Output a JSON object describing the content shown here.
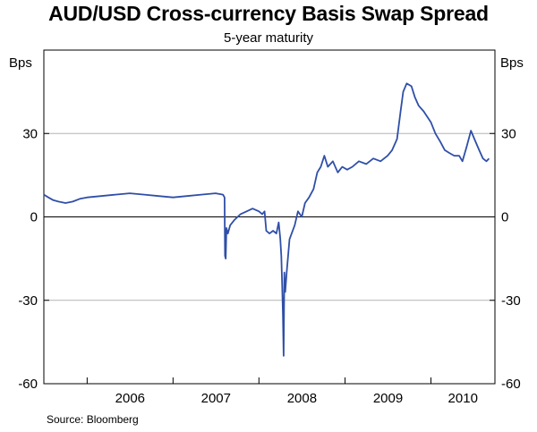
{
  "chart_data": {
    "type": "line",
    "title": "AUD/USD Cross-currency Basis Swap Spread",
    "subtitle": "5-year maturity",
    "ylabel_left": "Bps",
    "ylabel_right": "Bps",
    "ylim": [
      -60,
      60
    ],
    "yticks": [
      -60,
      -30,
      0,
      30
    ],
    "ytick_labels": [
      "-60",
      "-30",
      "0",
      "30"
    ],
    "xlim": [
      "2005-07-01",
      "2010-09-30"
    ],
    "xtick_labels": [
      "2006",
      "2007",
      "2008",
      "2009",
      "2010"
    ],
    "year_boundaries": [
      "2006-01-01",
      "2007-01-01",
      "2008-01-01",
      "2009-01-01",
      "2010-01-01"
    ],
    "grid": true,
    "line_color": "#2f4fa8",
    "series": [
      {
        "points": [
          [
            "2005-07-01",
            8
          ],
          [
            "2005-07-20",
            7
          ],
          [
            "2005-08-10",
            6
          ],
          [
            "2005-09-01",
            5.5
          ],
          [
            "2005-10-01",
            5
          ],
          [
            "2005-11-01",
            5.5
          ],
          [
            "2005-12-01",
            6.5
          ],
          [
            "2006-01-01",
            7
          ],
          [
            "2006-03-01",
            7.5
          ],
          [
            "2006-05-01",
            8
          ],
          [
            "2006-07-01",
            8.5
          ],
          [
            "2006-09-01",
            8
          ],
          [
            "2006-11-01",
            7.5
          ],
          [
            "2007-01-01",
            7
          ],
          [
            "2007-03-01",
            7.5
          ],
          [
            "2007-05-01",
            8
          ],
          [
            "2007-07-01",
            8.5
          ],
          [
            "2007-08-01",
            8
          ],
          [
            "2007-08-08",
            7
          ],
          [
            "2007-08-10",
            -14
          ],
          [
            "2007-08-13",
            -15
          ],
          [
            "2007-08-16",
            -4
          ],
          [
            "2007-08-22",
            -6
          ],
          [
            "2007-09-01",
            -3
          ],
          [
            "2007-09-20",
            -1
          ],
          [
            "2007-10-15",
            1
          ],
          [
            "2007-11-10",
            2
          ],
          [
            "2007-12-05",
            3
          ],
          [
            "2008-01-01",
            2
          ],
          [
            "2008-01-15",
            1
          ],
          [
            "2008-01-25",
            2
          ],
          [
            "2008-02-01",
            -5
          ],
          [
            "2008-02-15",
            -6
          ],
          [
            "2008-03-01",
            -5
          ],
          [
            "2008-03-15",
            -6
          ],
          [
            "2008-03-25",
            -2
          ],
          [
            "2008-04-01",
            -8
          ],
          [
            "2008-04-05",
            -14
          ],
          [
            "2008-04-09",
            -25
          ],
          [
            "2008-04-12",
            -35
          ],
          [
            "2008-04-15",
            -50
          ],
          [
            "2008-04-18",
            -20
          ],
          [
            "2008-04-22",
            -27
          ],
          [
            "2008-04-28",
            -20
          ],
          [
            "2008-05-10",
            -8
          ],
          [
            "2008-06-01",
            -3
          ],
          [
            "2008-06-15",
            2
          ],
          [
            "2008-07-01",
            0
          ],
          [
            "2008-07-15",
            5
          ],
          [
            "2008-08-01",
            7
          ],
          [
            "2008-08-20",
            10
          ],
          [
            "2008-09-05",
            16
          ],
          [
            "2008-09-20",
            18
          ],
          [
            "2008-10-05",
            22
          ],
          [
            "2008-10-20",
            18
          ],
          [
            "2008-11-10",
            20
          ],
          [
            "2008-12-01",
            16
          ],
          [
            "2008-12-20",
            18
          ],
          [
            "2009-01-10",
            17
          ],
          [
            "2009-02-01",
            18
          ],
          [
            "2009-03-01",
            20
          ],
          [
            "2009-04-01",
            19
          ],
          [
            "2009-05-01",
            21
          ],
          [
            "2009-06-01",
            20
          ],
          [
            "2009-07-01",
            22
          ],
          [
            "2009-07-20",
            24
          ],
          [
            "2009-08-10",
            28
          ],
          [
            "2009-08-25",
            38
          ],
          [
            "2009-09-05",
            45
          ],
          [
            "2009-09-20",
            48
          ],
          [
            "2009-10-10",
            47
          ],
          [
            "2009-10-25",
            43
          ],
          [
            "2009-11-10",
            40
          ],
          [
            "2009-12-01",
            38
          ],
          [
            "2010-01-01",
            34
          ],
          [
            "2010-01-20",
            30
          ],
          [
            "2010-02-10",
            27
          ],
          [
            "2010-03-01",
            24
          ],
          [
            "2010-03-20",
            23
          ],
          [
            "2010-04-10",
            22
          ],
          [
            "2010-05-01",
            22
          ],
          [
            "2010-05-15",
            20
          ],
          [
            "2010-06-01",
            25
          ],
          [
            "2010-06-20",
            31
          ],
          [
            "2010-07-05",
            28
          ],
          [
            "2010-07-25",
            24
          ],
          [
            "2010-08-10",
            21
          ],
          [
            "2010-08-25",
            20
          ],
          [
            "2010-09-05",
            21
          ]
        ]
      }
    ]
  },
  "source": "Source: Bloomberg"
}
